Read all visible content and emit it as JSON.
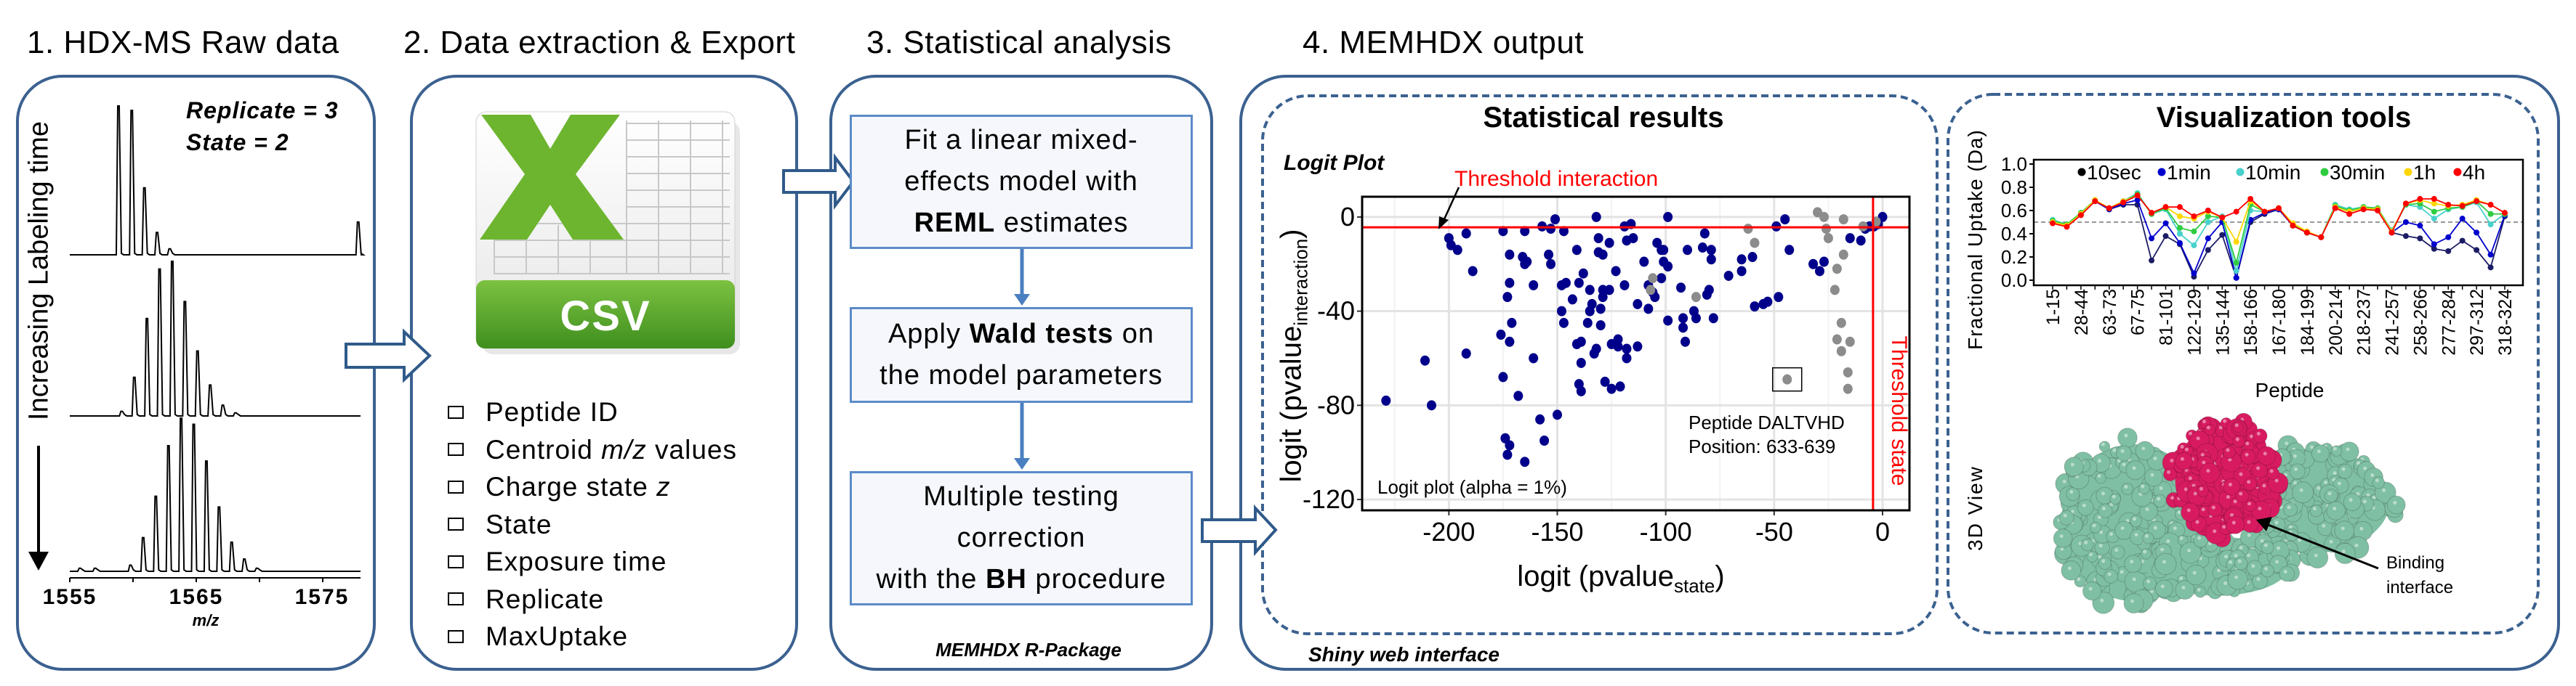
{
  "panel1": {
    "title": "1. HDX-MS Raw data",
    "side_label": "Increasing Labeling time",
    "replicate": "Replicate = 3",
    "state": "State = 2",
    "x_ticks": [
      "1555",
      "1565",
      "1575"
    ],
    "x_label": "m/z",
    "spectra": [
      {
        "peaks": [
          [
            1558.85,
            1.0
          ],
          [
            1559.9,
            0.97
          ],
          [
            1560.9,
            0.45
          ],
          [
            1561.9,
            0.15
          ],
          [
            1562.9,
            0.04
          ],
          [
            1577.8,
            0.22
          ]
        ]
      },
      {
        "peaks": [
          [
            1559.1,
            0.03
          ],
          [
            1560.1,
            0.25
          ],
          [
            1561.1,
            0.63
          ],
          [
            1562.1,
            0.95
          ],
          [
            1563.1,
            1.0
          ],
          [
            1564.1,
            0.74
          ],
          [
            1565.1,
            0.42
          ],
          [
            1566.1,
            0.2
          ],
          [
            1567.1,
            0.07
          ],
          [
            1568.1,
            0.02
          ]
        ]
      },
      {
        "peaks": [
          [
            1555.8,
            0.02
          ],
          [
            1557.0,
            0.02
          ],
          [
            1559.8,
            0.04
          ],
          [
            1560.8,
            0.22
          ],
          [
            1561.8,
            0.49
          ],
          [
            1562.8,
            0.82
          ],
          [
            1563.8,
            1.0
          ],
          [
            1564.8,
            0.96
          ],
          [
            1565.8,
            0.72
          ],
          [
            1566.8,
            0.42
          ],
          [
            1567.8,
            0.19
          ],
          [
            1568.8,
            0.08
          ],
          [
            1569.8,
            0.02
          ]
        ]
      }
    ]
  },
  "panel2": {
    "title": "2. Data extraction & Export",
    "icon_label": "CSV",
    "items": [
      {
        "text": "Peptide ID"
      },
      {
        "pre": "Centroid ",
        "em": "m/z",
        "post": " values"
      },
      {
        "pre": "Charge state ",
        "em": "z",
        "post": ""
      },
      {
        "text": "State"
      },
      {
        "text": "Exposure time"
      },
      {
        "text": "Replicate"
      },
      {
        "text": "MaxUptake"
      }
    ]
  },
  "panel3": {
    "title": "3. Statistical analysis",
    "step1": {
      "l1": "Fit a linear mixed-",
      "l2": "effects model with",
      "bold": "REML",
      "rest": " estimates"
    },
    "step2": {
      "pre": "Apply ",
      "bold": "Wald tests",
      "post": " on",
      "l2": "the model parameters"
    },
    "step3": {
      "l1": "Multiple testing",
      "l2": "correction",
      "pre": "with the ",
      "bold": "BH",
      "post": " procedure"
    },
    "footer": "MEMHDX R-Package"
  },
  "panel4": {
    "title": "4. MEMHDX output",
    "footer": "Shiny web interface",
    "stat_title": "Statistical results",
    "viz_title": "Visualization tools",
    "view3d_label": "3D View",
    "binding_l1": "Binding",
    "binding_l2": "interface"
  },
  "colors": {
    "box_border": "#3b6190",
    "step_border": "#5b8bc8",
    "threshold": "#ff0000",
    "protein": "#7fbfa3",
    "interface": "#d81b60"
  },
  "chart_data": [
    {
      "type": "scatter",
      "title": "Logit Plot",
      "xlabel": "logit (pvalue",
      "xlabel_sub": "state",
      "ylabel": "logit (pvalue",
      "ylabel_sub": "interaction",
      "xlim": [
        -240,
        12.4
      ],
      "ylim": [
        -124.6,
        8.6
      ],
      "x_ticks": [
        -200,
        -150,
        -100,
        -50,
        0
      ],
      "y_ticks": [
        0,
        -40,
        -80,
        -120
      ],
      "grid": true,
      "threshold_interaction": -4.4,
      "threshold_state": -4.4,
      "threshold_interaction_label": "Threshold interaction",
      "threshold_state_label": "Threshold state",
      "annotation_box": [
        -44,
        -69
      ],
      "annotation_l1": "Peptide DALTVHD",
      "annotation_l2": "Position: 633-639",
      "note": "Logit plot (alpha = 1%)",
      "series": [
        {
          "color": "#00008b",
          "points": [
            [
              -229,
              -78
            ],
            [
              -211,
              -61
            ],
            [
              -208,
              -80
            ],
            [
              -200,
              -9
            ],
            [
              -199,
              -12
            ],
            [
              -196,
              -14
            ],
            [
              -192,
              -7
            ],
            [
              -192,
              -58
            ],
            [
              -189,
              -23
            ],
            [
              -176,
              -50
            ],
            [
              -175,
              -6
            ],
            [
              -175,
              -68
            ],
            [
              -174,
              -94
            ],
            [
              -173,
              -34
            ],
            [
              -173,
              -101
            ],
            [
              -172,
              -16
            ],
            [
              -172,
              -97
            ],
            [
              -172,
              -53
            ],
            [
              -172,
              -28
            ],
            [
              -171,
              -45
            ],
            [
              -168,
              -76
            ],
            [
              -166,
              -17
            ],
            [
              -165,
              -104
            ],
            [
              -165,
              -6
            ],
            [
              -165,
              -20
            ],
            [
              -164,
              -19
            ],
            [
              -161,
              -29
            ],
            [
              -161,
              -60
            ],
            [
              -158,
              -86
            ],
            [
              -157,
              -4
            ],
            [
              -156,
              -95
            ],
            [
              -154,
              -16
            ],
            [
              -153,
              -5
            ],
            [
              -153,
              -20
            ],
            [
              -151,
              -1
            ],
            [
              -150,
              -84
            ],
            [
              -148,
              -29
            ],
            [
              -148,
              -40
            ],
            [
              -147,
              -6
            ],
            [
              -147,
              -45
            ],
            [
              -146,
              -28
            ],
            [
              -143,
              -35
            ],
            [
              -141,
              -14
            ],
            [
              -141,
              -54
            ],
            [
              -140,
              -71
            ],
            [
              -140,
              -28
            ],
            [
              -139,
              -74
            ],
            [
              -139,
              -53
            ],
            [
              -139,
              -62
            ],
            [
              -138,
              -24
            ],
            [
              -136,
              -45
            ],
            [
              -135,
              -31
            ],
            [
              -135,
              -40
            ],
            [
              -134,
              -37
            ],
            [
              -133,
              -58
            ],
            [
              -132,
              -56
            ],
            [
              -132,
              0
            ],
            [
              -131,
              -9
            ],
            [
              -131,
              -15
            ],
            [
              -130,
              -39
            ],
            [
              -130,
              -46
            ],
            [
              -129,
              -16
            ],
            [
              -129,
              -31
            ],
            [
              -129,
              -34
            ],
            [
              -128,
              -70
            ],
            [
              -126,
              -31
            ],
            [
              -126,
              -11
            ],
            [
              -125,
              -54
            ],
            [
              -125,
              -73
            ],
            [
              -123,
              -23
            ],
            [
              -122,
              -52
            ],
            [
              -122,
              -55
            ],
            [
              -121,
              -72
            ],
            [
              -119,
              -29
            ],
            [
              -118,
              -60
            ],
            [
              -118,
              -56
            ],
            [
              -119,
              -4
            ],
            [
              -118,
              -10
            ],
            [
              -116,
              -3
            ],
            [
              -115,
              -9
            ],
            [
              -113,
              -37
            ],
            [
              -113,
              -55
            ],
            [
              -110,
              -19
            ],
            [
              -108,
              -39
            ],
            [
              -108,
              -29
            ],
            [
              -106,
              -32
            ],
            [
              -105,
              -34
            ],
            [
              -104,
              -11
            ],
            [
              -102,
              -26
            ],
            [
              -102,
              -14
            ],
            [
              -101,
              -14
            ],
            [
              -101,
              -19
            ],
            [
              -99,
              0
            ],
            [
              -99,
              -44
            ],
            [
              -99,
              -21
            ],
            [
              -93,
              -30
            ],
            [
              -92,
              -47
            ],
            [
              -92,
              -43
            ],
            [
              -91,
              -53
            ],
            [
              -90,
              -14
            ],
            [
              -87,
              -40
            ],
            [
              -86,
              -43
            ],
            [
              -83,
              -13
            ],
            [
              -82,
              -7
            ],
            [
              -81,
              -33
            ],
            [
              -80,
              -31
            ],
            [
              -79,
              -14
            ],
            [
              -79,
              -18
            ],
            [
              -78,
              -43
            ],
            [
              -71,
              -25
            ],
            [
              -65,
              -23
            ],
            [
              -65,
              -18
            ],
            [
              -60,
              -17
            ],
            [
              -59,
              -38
            ],
            [
              -55,
              -37
            ],
            [
              -53,
              -36
            ],
            [
              -49,
              -4
            ],
            [
              -48,
              -34
            ],
            [
              -45,
              -1
            ],
            [
              -43,
              -14
            ],
            [
              -32,
              -20
            ],
            [
              -29,
              -23
            ],
            [
              -27,
              -19
            ],
            [
              -15,
              -9
            ],
            [
              -10,
              -10
            ],
            [
              -8,
              -5
            ],
            [
              -6,
              -4
            ],
            [
              -4,
              -4
            ],
            [
              -2,
              -3
            ],
            [
              0,
              0
            ]
          ]
        },
        {
          "color": "#8c8c8c",
          "points": [
            [
              -106,
              -26
            ],
            [
              -107,
              -31
            ],
            [
              -86,
              -34
            ],
            [
              -62,
              -5
            ],
            [
              -59,
              -11
            ],
            [
              -44,
              -69
            ],
            [
              -30,
              2
            ],
            [
              -27,
              0
            ],
            [
              -26,
              -5
            ],
            [
              -25,
              -9
            ],
            [
              -18,
              -1
            ],
            [
              -18,
              -16
            ],
            [
              -21,
              -22
            ],
            [
              -22,
              -31
            ],
            [
              -19,
              -45
            ],
            [
              -21,
              -52
            ],
            [
              -19,
              -57
            ],
            [
              -15,
              -53
            ],
            [
              -16,
              -66
            ],
            [
              -16,
              -73
            ],
            [
              -9,
              -4
            ],
            [
              -3,
              -2
            ]
          ]
        }
      ]
    },
    {
      "type": "line",
      "xlabel": "Peptide",
      "ylabel": "Fractional Uptake (Da)",
      "ylim": [
        -0.044,
        1.0375
      ],
      "y_ticks": [
        "0.0",
        "0.2",
        "0.4",
        "0.6",
        "0.8",
        "1.0"
      ],
      "reference_line": 0.5,
      "grid": false,
      "legend_position": "top",
      "categories_labeled": [
        "1-15",
        "28-44",
        "63-73",
        "67-75",
        "81-101",
        "122-129",
        "135-144",
        "158-166",
        "167-180",
        "184-199",
        "200-214",
        "218-237",
        "241-257",
        "258-266",
        "277-284",
        "297-312",
        "318-324"
      ],
      "series": [
        {
          "name": "10sec",
          "color": "#1c1c66",
          "legend_color": "#000000",
          "values": [
            0.5,
            0.47,
            0.57,
            0.68,
            0.61,
            0.65,
            0.65,
            0.17,
            0.38,
            0.31,
            0.03,
            0.26,
            0.39,
            0.02,
            0.5,
            0.57,
            0.61,
            0.47,
            0.41,
            0.37,
            0.63,
            0.59,
            0.62,
            0.61,
            0.41,
            0.38,
            0.36,
            0.27,
            0.25,
            0.34,
            0.26,
            0.11,
            0.55
          ]
        },
        {
          "name": "1min",
          "color": "#0000cd",
          "legend_color": "#0000cd",
          "values": [
            0.5,
            0.47,
            0.57,
            0.68,
            0.61,
            0.66,
            0.69,
            0.36,
            0.49,
            0.32,
            0.06,
            0.36,
            0.5,
            0.02,
            0.52,
            0.58,
            0.61,
            0.47,
            0.41,
            0.37,
            0.63,
            0.59,
            0.62,
            0.61,
            0.41,
            0.5,
            0.47,
            0.31,
            0.37,
            0.53,
            0.41,
            0.22,
            0.56
          ]
        },
        {
          "name": "10min",
          "color": "#48d1cc",
          "legend_color": "#48d1cc",
          "values": [
            0.52,
            0.48,
            0.58,
            0.69,
            0.62,
            0.68,
            0.75,
            0.57,
            0.61,
            0.4,
            0.3,
            0.5,
            0.55,
            0.08,
            0.6,
            0.59,
            0.62,
            0.48,
            0.41,
            0.37,
            0.65,
            0.61,
            0.63,
            0.62,
            0.43,
            0.65,
            0.63,
            0.53,
            0.61,
            0.63,
            0.67,
            0.48,
            0.57
          ]
        },
        {
          "name": "30min",
          "color": "#2ecc40",
          "legend_color": "#2ecc40",
          "values": [
            0.51,
            0.48,
            0.58,
            0.69,
            0.62,
            0.68,
            0.74,
            0.57,
            0.62,
            0.45,
            0.42,
            0.55,
            0.54,
            0.15,
            0.65,
            0.59,
            0.62,
            0.48,
            0.41,
            0.37,
            0.64,
            0.6,
            0.63,
            0.62,
            0.42,
            0.65,
            0.66,
            0.59,
            0.62,
            0.63,
            0.68,
            0.57,
            0.57
          ]
        },
        {
          "name": "1h",
          "color": "#ffd700",
          "legend_color": "#ffd700",
          "values": [
            0.5,
            0.47,
            0.57,
            0.69,
            0.62,
            0.68,
            0.73,
            0.58,
            0.63,
            0.55,
            0.53,
            0.59,
            0.54,
            0.33,
            0.68,
            0.59,
            0.62,
            0.49,
            0.42,
            0.37,
            0.63,
            0.59,
            0.62,
            0.61,
            0.42,
            0.66,
            0.69,
            0.66,
            0.64,
            0.65,
            0.69,
            0.65,
            0.58
          ]
        },
        {
          "name": "4h",
          "color": "#ff0000",
          "legend_color": "#ff0000",
          "values": [
            0.49,
            0.46,
            0.56,
            0.68,
            0.62,
            0.67,
            0.73,
            0.58,
            0.63,
            0.63,
            0.55,
            0.6,
            0.54,
            0.59,
            0.7,
            0.59,
            0.62,
            0.47,
            0.41,
            0.37,
            0.62,
            0.57,
            0.61,
            0.6,
            0.41,
            0.66,
            0.7,
            0.7,
            0.65,
            0.64,
            0.68,
            0.65,
            0.58
          ]
        }
      ]
    }
  ]
}
